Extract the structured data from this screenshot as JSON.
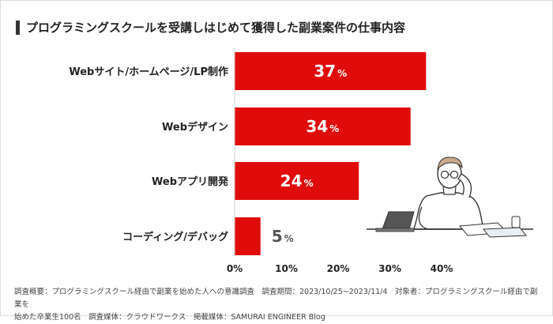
{
  "title": "プログラミングスクールを受講しはじめて獲得した副業案件の仕事内容",
  "colors": {
    "bar": "#e00c0c",
    "accent_bar": "#333333",
    "value_inside": "#ffffff",
    "value_outside": "#555555"
  },
  "chart_data": {
    "type": "bar",
    "orientation": "horizontal",
    "categories": [
      "Webサイト/ホームページ/LP制作",
      "Webデザイン",
      "Webアプリ開発",
      "コーディング/デバッグ"
    ],
    "values": [
      37,
      34,
      24,
      5
    ],
    "value_labels": [
      "37",
      "34",
      "24",
      "5"
    ],
    "unit": "%",
    "xlim": [
      0,
      40
    ],
    "xticks": [
      "0%",
      "10%",
      "20%",
      "30%",
      "40%"
    ],
    "grid": false
  },
  "footnote": {
    "line1": "調査概要：プログラミングスクール経由で副業を始めた人への意識調査　調査期間：2023/10/25~2023/11/4　対象者：プログラミングスクール経由で副業を",
    "line2": "始めた卒業生100名　調査媒体：クラウドワークス　掲載媒体：SAMURAI ENGINEER Blog"
  }
}
